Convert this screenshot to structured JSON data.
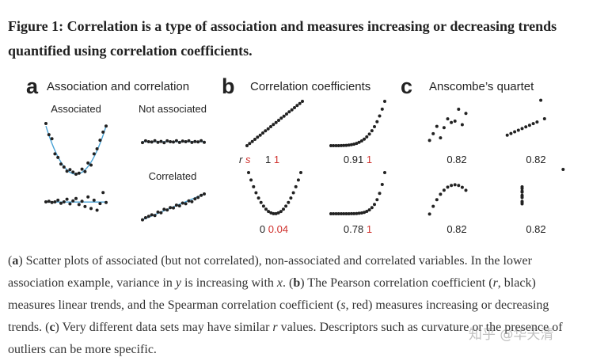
{
  "figure_title": "Figure 1: Correlation is a type of association and measures increasing or decreasing trends quantified using correlation coefficients.",
  "colors": {
    "point": "#222222",
    "fit_line": "#4aa3d6",
    "r_label": "#222222",
    "s_label": "#d0312d"
  },
  "chart_data": [
    {
      "type": "scatter",
      "panel_letter": "a",
      "title": "Association and correlation",
      "subplots": [
        {
          "label": "Associated",
          "points": [
            [
              -1.0,
              1.0
            ],
            [
              -0.9,
              0.78
            ],
            [
              -0.8,
              0.7
            ],
            [
              -0.7,
              0.4
            ],
            [
              -0.6,
              0.33
            ],
            [
              -0.5,
              0.2
            ],
            [
              -0.4,
              0.14
            ],
            [
              -0.3,
              0.06
            ],
            [
              -0.2,
              0.09
            ],
            [
              -0.1,
              0.04
            ],
            [
              0.0,
              0.0
            ],
            [
              0.1,
              0.02
            ],
            [
              0.2,
              0.1
            ],
            [
              0.3,
              0.05
            ],
            [
              0.4,
              0.22
            ],
            [
              0.5,
              0.18
            ],
            [
              0.6,
              0.4
            ],
            [
              0.7,
              0.5
            ],
            [
              0.8,
              0.67
            ],
            [
              0.9,
              0.83
            ],
            [
              1.0,
              0.95
            ]
          ],
          "fit": "parabola"
        },
        {
          "label": "Not associated",
          "points": [
            [
              -1.0,
              0.45
            ],
            [
              -0.9,
              0.55
            ],
            [
              -0.8,
              0.5
            ],
            [
              -0.7,
              0.48
            ],
            [
              -0.6,
              0.56
            ],
            [
              -0.5,
              0.47
            ],
            [
              -0.4,
              0.52
            ],
            [
              -0.3,
              0.44
            ],
            [
              -0.2,
              0.55
            ],
            [
              -0.1,
              0.5
            ],
            [
              0.0,
              0.48
            ],
            [
              0.1,
              0.56
            ],
            [
              0.2,
              0.46
            ],
            [
              0.3,
              0.53
            ],
            [
              0.4,
              0.5
            ],
            [
              0.5,
              0.55
            ],
            [
              0.6,
              0.46
            ],
            [
              0.7,
              0.51
            ],
            [
              0.8,
              0.49
            ],
            [
              0.9,
              0.56
            ],
            [
              1.0,
              0.47
            ]
          ],
          "fit": "flat"
        },
        {
          "label": "",
          "points": [
            [
              -1.0,
              0.5
            ],
            [
              -0.9,
              0.52
            ],
            [
              -0.8,
              0.48
            ],
            [
              -0.7,
              0.5
            ],
            [
              -0.6,
              0.55
            ],
            [
              -0.5,
              0.46
            ],
            [
              -0.4,
              0.5
            ],
            [
              -0.3,
              0.58
            ],
            [
              -0.2,
              0.44
            ],
            [
              -0.1,
              0.53
            ],
            [
              0.0,
              0.6
            ],
            [
              0.1,
              0.42
            ],
            [
              0.2,
              0.52
            ],
            [
              0.3,
              0.36
            ],
            [
              0.4,
              0.65
            ],
            [
              0.5,
              0.3
            ],
            [
              0.6,
              0.55
            ],
            [
              0.7,
              0.25
            ],
            [
              0.8,
              0.45
            ],
            [
              0.9,
              0.78
            ],
            [
              1.0,
              0.48
            ]
          ],
          "fit": "flat"
        },
        {
          "label": "Correlated",
          "points": [
            [
              -1.0,
              0.1
            ],
            [
              -0.9,
              0.16
            ],
            [
              -0.8,
              0.2
            ],
            [
              -0.7,
              0.24
            ],
            [
              -0.6,
              0.22
            ],
            [
              -0.5,
              0.32
            ],
            [
              -0.4,
              0.3
            ],
            [
              -0.3,
              0.4
            ],
            [
              -0.2,
              0.38
            ],
            [
              -0.1,
              0.45
            ],
            [
              0.0,
              0.44
            ],
            [
              0.1,
              0.52
            ],
            [
              0.2,
              0.5
            ],
            [
              0.3,
              0.58
            ],
            [
              0.4,
              0.56
            ],
            [
              0.5,
              0.64
            ],
            [
              0.6,
              0.62
            ],
            [
              0.7,
              0.7
            ],
            [
              0.8,
              0.74
            ],
            [
              0.9,
              0.8
            ],
            [
              1.0,
              0.84
            ]
          ],
          "fit": "linear"
        }
      ]
    },
    {
      "type": "scatter",
      "panel_letter": "b",
      "title": "Correlation coefficients",
      "subplots": [
        {
          "shape": "linear",
          "r": "1",
          "s": "1",
          "prefix": "r s"
        },
        {
          "shape": "exponential",
          "r": "0.91",
          "s": "1"
        },
        {
          "shape": "u-shaped",
          "r": "0",
          "s": "0.04"
        },
        {
          "shape": "steep-exponential",
          "r": "0.78",
          "s": "1"
        }
      ]
    },
    {
      "type": "scatter",
      "panel_letter": "c",
      "title": "Anscombe’s quartet",
      "subplots": [
        {
          "x": [
            10,
            8,
            13,
            9,
            11,
            14,
            6,
            4,
            12,
            7,
            5
          ],
          "y": [
            8.04,
            6.95,
            7.58,
            8.81,
            8.33,
            9.96,
            7.24,
            4.26,
            10.84,
            4.82,
            5.68
          ],
          "r": "0.82"
        },
        {
          "x": [
            10,
            8,
            13,
            9,
            11,
            14,
            6,
            4,
            12,
            7,
            5
          ],
          "y": [
            7.46,
            6.77,
            12.74,
            7.11,
            7.81,
            8.84,
            6.08,
            5.39,
            8.15,
            6.42,
            5.73
          ],
          "r": "0.82"
        },
        {
          "x": [
            10,
            8,
            13,
            9,
            11,
            14,
            6,
            4,
            12,
            7,
            5
          ],
          "y": [
            9.14,
            8.14,
            8.74,
            8.77,
            9.26,
            8.1,
            6.13,
            3.1,
            9.13,
            7.26,
            4.74
          ],
          "r": "0.82"
        },
        {
          "x": [
            8,
            8,
            8,
            8,
            8,
            8,
            8,
            19,
            8,
            8,
            8
          ],
          "y": [
            6.58,
            5.76,
            7.71,
            8.84,
            8.47,
            7.04,
            5.25,
            12.5,
            5.56,
            7.91,
            6.89
          ],
          "r": "0.82"
        }
      ]
    }
  ],
  "caption": {
    "a_label": "a",
    "a_text": ") Scatter plots of associated (but not correlated), non-associated and correlated variables. In the lower association example, variance in ",
    "y_var": "y",
    "mid_text": " is increasing with ",
    "x_var": "x",
    "after_x": ". (",
    "b_label": "b",
    "b_text_1": ") The Pearson correlation coefficient (",
    "r_var": "r",
    "b_text_2": ", black) measures linear trends, and the Spearman correlation coefficient (",
    "s_var": "s",
    "b_text_3": ", red) measures increasing or decreasing trends. (",
    "c_label": "c",
    "c_text_1": ") Very different data sets may have similar ",
    "r_var2": "r",
    "c_text_2": " values. Descriptors such as curvature or the presence of outliers can be more specific."
  },
  "watermark": "知乎 @华天清"
}
